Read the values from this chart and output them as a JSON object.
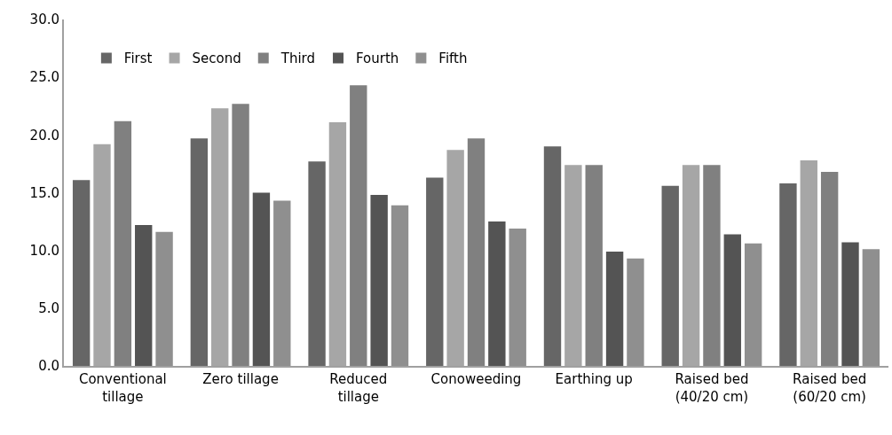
{
  "chart_data": {
    "type": "bar",
    "categories": [
      "Conventional tillage",
      "Zero tillage",
      "Reduced tillage",
      "Conoweeding",
      "Earthing up",
      "Raised bed (40/20 cm)",
      "Raised bed (60/20 cm)"
    ],
    "series": [
      {
        "name": "First",
        "color": "#666666",
        "values": [
          16.1,
          19.7,
          17.7,
          16.3,
          19.0,
          15.6,
          15.8
        ]
      },
      {
        "name": "Second",
        "color": "#a6a6a6",
        "values": [
          19.2,
          22.3,
          21.1,
          18.7,
          17.4,
          17.4,
          17.8
        ]
      },
      {
        "name": "Third",
        "color": "#808080",
        "values": [
          21.2,
          22.7,
          24.3,
          19.7,
          17.4,
          17.4,
          16.8
        ]
      },
      {
        "name": "Fourth",
        "color": "#545454",
        "values": [
          12.2,
          15.0,
          14.8,
          12.5,
          9.9,
          11.4,
          10.7
        ]
      },
      {
        "name": "Fifth",
        "color": "#8f8f8f",
        "values": [
          11.6,
          14.3,
          13.9,
          11.9,
          9.3,
          10.6,
          10.1
        ]
      }
    ],
    "ylim": [
      0,
      30
    ],
    "yticks": [
      {
        "value": 0,
        "label": "0.0"
      },
      {
        "value": 5,
        "label": "5.0"
      },
      {
        "value": 10,
        "label": "10.0"
      },
      {
        "value": 15,
        "label": "15.0"
      },
      {
        "value": 20,
        "label": "20.0"
      },
      {
        "value": 25,
        "label": "25.0"
      },
      {
        "value": 30,
        "label": "30.0"
      }
    ],
    "grid": false,
    "legend": "top left"
  }
}
